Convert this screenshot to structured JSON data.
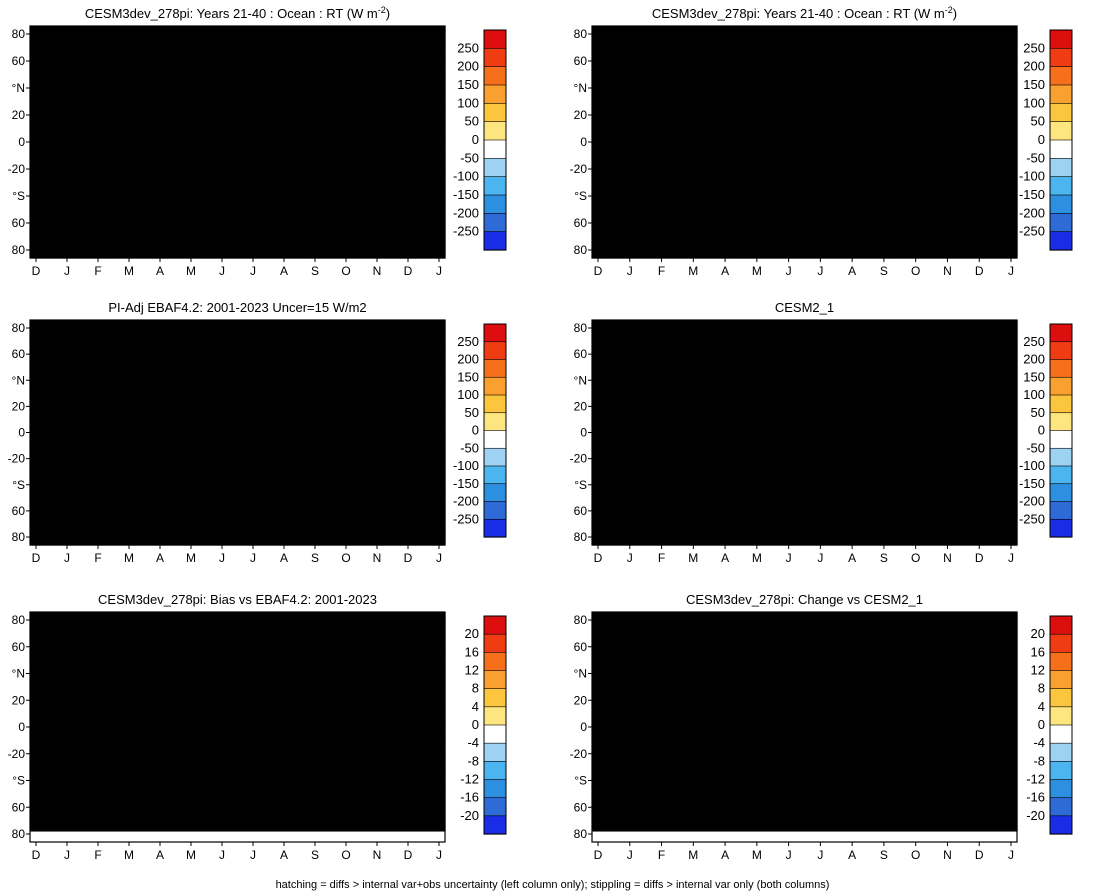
{
  "chart_data": [
    {
      "type": "heatmap",
      "title": "CESM3dev_278pi: Years 21-40 : Ocean : RT (W m",
      "title_superscript": "-2",
      "title_suffix": ")",
      "x_ticks": [
        "D",
        "J",
        "F",
        "M",
        "A",
        "M",
        "J",
        "J",
        "A",
        "S",
        "O",
        "N",
        "D",
        "J"
      ],
      "y_ticks": [
        "80",
        "60",
        "°N",
        "20",
        "0",
        "-20",
        "°S",
        "60",
        "80"
      ],
      "colorbar": {
        "labels": [
          "250",
          "200",
          "150",
          "100",
          "50",
          "0",
          "-50",
          "-100",
          "-150",
          "-200",
          "-250"
        ],
        "colors": [
          "#dd0e0e",
          "#f03c12",
          "#f6701c",
          "#faa030",
          "#fcc53e",
          "#fde680",
          "#ffffff",
          "#9dd2f3",
          "#4cb5ef",
          "#2d8fe0",
          "#2e6bd7",
          "#1a2de6"
        ]
      },
      "field": {
        "kind": "rt_mean",
        "amplitude": 1.0,
        "seed": 11,
        "noise": 0.03
      },
      "pattern": {
        "stipple": true,
        "hatching": true
      }
    },
    {
      "type": "heatmap",
      "title": "CESM3dev_278pi: Years 21-40 : Ocean : RT (W m",
      "title_superscript": "-2",
      "title_suffix": ")",
      "x_ticks": [
        "D",
        "J",
        "F",
        "M",
        "A",
        "M",
        "J",
        "J",
        "A",
        "S",
        "O",
        "N",
        "D",
        "J"
      ],
      "y_ticks": [
        "80",
        "60",
        "°N",
        "20",
        "0",
        "-20",
        "°S",
        "60",
        "80"
      ],
      "colorbar": {
        "labels": [
          "250",
          "200",
          "150",
          "100",
          "50",
          "0",
          "-50",
          "-100",
          "-150",
          "-200",
          "-250"
        ],
        "colors": [
          "#dd0e0e",
          "#f03c12",
          "#f6701c",
          "#faa030",
          "#fcc53e",
          "#fde680",
          "#ffffff",
          "#9dd2f3",
          "#4cb5ef",
          "#2d8fe0",
          "#2e6bd7",
          "#1a2de6"
        ]
      },
      "field": {
        "kind": "rt_mean",
        "amplitude": 1.0,
        "seed": 12,
        "noise": 0.02
      },
      "pattern": {
        "stipple": true,
        "hatching": false
      }
    },
    {
      "type": "heatmap",
      "title": "PI-Adj EBAF4.2: 2001-2023 Uncer=15 W/m2",
      "x_ticks": [
        "D",
        "J",
        "F",
        "M",
        "A",
        "M",
        "J",
        "J",
        "A",
        "S",
        "O",
        "N",
        "D",
        "J"
      ],
      "y_ticks": [
        "80",
        "60",
        "°N",
        "20",
        "0",
        "-20",
        "°S",
        "60",
        "80"
      ],
      "colorbar": {
        "labels": [
          "250",
          "200",
          "150",
          "100",
          "50",
          "0",
          "-50",
          "-100",
          "-150",
          "-200",
          "-250"
        ],
        "colors": [
          "#dd0e0e",
          "#f03c12",
          "#f6701c",
          "#faa030",
          "#fcc53e",
          "#fde680",
          "#ffffff",
          "#9dd2f3",
          "#4cb5ef",
          "#2d8fe0",
          "#2e6bd7",
          "#1a2de6"
        ]
      },
      "field": {
        "kind": "rt_mean",
        "amplitude": 0.98,
        "seed": 13,
        "noise": 0.03
      },
      "pattern": {
        "stipple": true,
        "hatching": true
      }
    },
    {
      "type": "heatmap",
      "title": "CESM2_1",
      "x_ticks": [
        "D",
        "J",
        "F",
        "M",
        "A",
        "M",
        "J",
        "J",
        "A",
        "S",
        "O",
        "N",
        "D",
        "J"
      ],
      "y_ticks": [
        "80",
        "60",
        "°N",
        "20",
        "0",
        "-20",
        "°S",
        "60",
        "80"
      ],
      "colorbar": {
        "labels": [
          "250",
          "200",
          "150",
          "100",
          "50",
          "0",
          "-50",
          "-100",
          "-150",
          "-200",
          "-250"
        ],
        "colors": [
          "#dd0e0e",
          "#f03c12",
          "#f6701c",
          "#faa030",
          "#fcc53e",
          "#fde680",
          "#ffffff",
          "#9dd2f3",
          "#4cb5ef",
          "#2d8fe0",
          "#2e6bd7",
          "#1a2de6"
        ]
      },
      "field": {
        "kind": "rt_mean",
        "amplitude": 1.0,
        "seed": 14,
        "noise": 0.02
      },
      "pattern": {
        "stipple": true,
        "hatching": false
      }
    },
    {
      "type": "heatmap",
      "title": "CESM3dev_278pi: Bias vs EBAF4.2: 2001-2023",
      "x_ticks": [
        "D",
        "J",
        "F",
        "M",
        "A",
        "M",
        "J",
        "J",
        "A",
        "S",
        "O",
        "N",
        "D",
        "J"
      ],
      "y_ticks": [
        "80",
        "60",
        "°N",
        "20",
        "0",
        "-20",
        "°S",
        "60",
        "80"
      ],
      "colorbar": {
        "labels": [
          "20",
          "16",
          "12",
          "8",
          "4",
          "0",
          "-4",
          "-8",
          "-12",
          "-16",
          "-20"
        ],
        "colors": [
          "#dd0e0e",
          "#f03c12",
          "#f6701c",
          "#faa030",
          "#fcc53e",
          "#fde680",
          "#ffffff",
          "#9dd2f3",
          "#4cb5ef",
          "#2d8fe0",
          "#2e6bd7",
          "#1a2de6"
        ]
      },
      "field": {
        "kind": "diff",
        "amplitude": 1.0,
        "seed": 21,
        "noise": 0.18
      },
      "pattern": {
        "stipple": true,
        "hatching": true
      }
    },
    {
      "type": "heatmap",
      "title": "CESM3dev_278pi: Change vs CESM2_1",
      "x_ticks": [
        "D",
        "J",
        "F",
        "M",
        "A",
        "M",
        "J",
        "J",
        "A",
        "S",
        "O",
        "N",
        "D",
        "J"
      ],
      "y_ticks": [
        "80",
        "60",
        "°N",
        "20",
        "0",
        "-20",
        "°S",
        "60",
        "80"
      ],
      "colorbar": {
        "labels": [
          "20",
          "16",
          "12",
          "8",
          "4",
          "0",
          "-4",
          "-8",
          "-12",
          "-16",
          "-20"
        ],
        "colors": [
          "#dd0e0e",
          "#f03c12",
          "#f6701c",
          "#faa030",
          "#fcc53e",
          "#fde680",
          "#ffffff",
          "#9dd2f3",
          "#4cb5ef",
          "#2d8fe0",
          "#2e6bd7",
          "#1a2de6"
        ]
      },
      "field": {
        "kind": "diff",
        "amplitude": 0.9,
        "seed": 22,
        "noise": 0.18
      },
      "pattern": {
        "stipple": true,
        "hatching": false
      }
    }
  ],
  "footer": "hatching = diffs > internal var+obs uncertainty (left column only); stippling = diffs > internal var only (both columns)"
}
